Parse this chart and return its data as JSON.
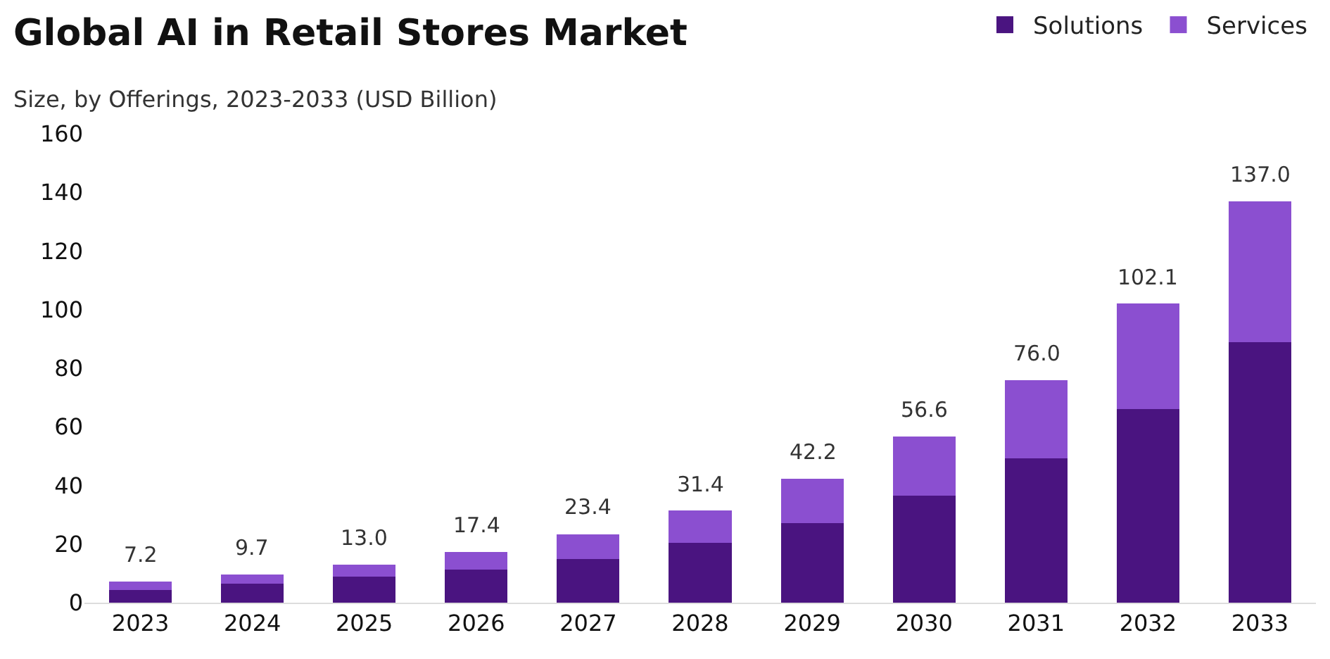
{
  "chart_data": {
    "type": "bar",
    "title": "Global AI in Retail Stores Market",
    "subtitle": "Size, by Offerings, 2023-2033 (USD Billion)",
    "categories": [
      "2023",
      "2024",
      "2025",
      "2026",
      "2027",
      "2028",
      "2029",
      "2030",
      "2031",
      "2032",
      "2033"
    ],
    "series": [
      {
        "name": "Solutions",
        "color": "#4a1480",
        "values": [
          4.4,
          6.4,
          8.8,
          11.2,
          14.8,
          20.4,
          27.2,
          36.5,
          49.3,
          66.0,
          88.8
        ]
      },
      {
        "name": "Services",
        "color": "#8b4fd0",
        "values": [
          2.8,
          3.3,
          4.2,
          6.2,
          8.6,
          11.0,
          15.0,
          20.1,
          26.7,
          36.1,
          48.2
        ]
      }
    ],
    "stacked": true,
    "totals": [
      "7.2",
      "9.7",
      "13.0",
      "17.4",
      "23.4",
      "31.4",
      "42.2",
      "56.6",
      "76.0",
      "102.1",
      "137.0"
    ],
    "ylim": [
      0,
      160
    ],
    "yticks": [
      0,
      20,
      40,
      60,
      80,
      100,
      120,
      140,
      160
    ],
    "grid": false,
    "legend": "top right"
  }
}
